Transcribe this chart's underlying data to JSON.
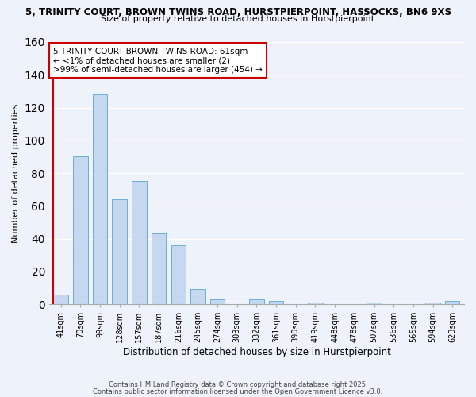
{
  "title1": "5, TRINITY COURT, BROWN TWINS ROAD, HURSTPIERPOINT, HASSOCKS, BN6 9XS",
  "title2": "Size of property relative to detached houses in Hurstpierpoint",
  "xlabel": "Distribution of detached houses by size in Hurstpierpoint",
  "ylabel": "Number of detached properties",
  "bar_labels": [
    "41sqm",
    "70sqm",
    "99sqm",
    "128sqm",
    "157sqm",
    "187sqm",
    "216sqm",
    "245sqm",
    "274sqm",
    "303sqm",
    "332sqm",
    "361sqm",
    "390sqm",
    "419sqm",
    "448sqm",
    "478sqm",
    "507sqm",
    "536sqm",
    "565sqm",
    "594sqm",
    "623sqm"
  ],
  "bar_values": [
    6,
    90,
    128,
    64,
    75,
    43,
    36,
    9,
    3,
    0,
    3,
    2,
    0,
    1,
    0,
    0,
    1,
    0,
    0,
    1,
    2
  ],
  "bar_color": "#c5d8f0",
  "bar_edge_color": "#6baed6",
  "vline_color": "#cc0000",
  "ylim": [
    0,
    160
  ],
  "yticks": [
    0,
    20,
    40,
    60,
    80,
    100,
    120,
    140,
    160
  ],
  "annotation_box_text": "5 TRINITY COURT BROWN TWINS ROAD: 61sqm\n← <1% of detached houses are smaller (2)\n>99% of semi-detached houses are larger (454) →",
  "footer1": "Contains HM Land Registry data © Crown copyright and database right 2025.",
  "footer2": "Contains public sector information licensed under the Open Government Licence v3.0.",
  "background_color": "#eef2fb",
  "grid_color": "#ffffff"
}
